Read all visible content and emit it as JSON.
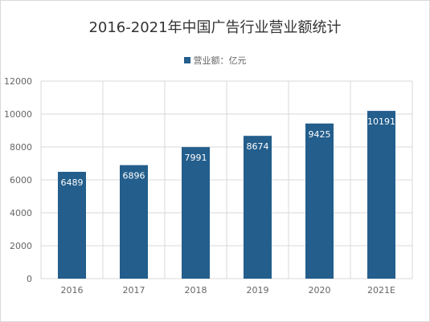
{
  "chart_data": {
    "type": "bar",
    "title": "2016-2021年中国广告行业营业额统计",
    "categories": [
      "2016",
      "2017",
      "2018",
      "2019",
      "2020",
      "2021E"
    ],
    "series": [
      {
        "name": "营业额：亿元",
        "values": [
          6489,
          6896,
          7991,
          8674,
          9425,
          10191
        ],
        "color": "#235e8c"
      }
    ],
    "ylim": [
      0,
      12000
    ],
    "yticks": [
      0,
      2000,
      4000,
      6000,
      8000,
      10000,
      12000
    ],
    "grid": true,
    "legend": "top-center"
  }
}
